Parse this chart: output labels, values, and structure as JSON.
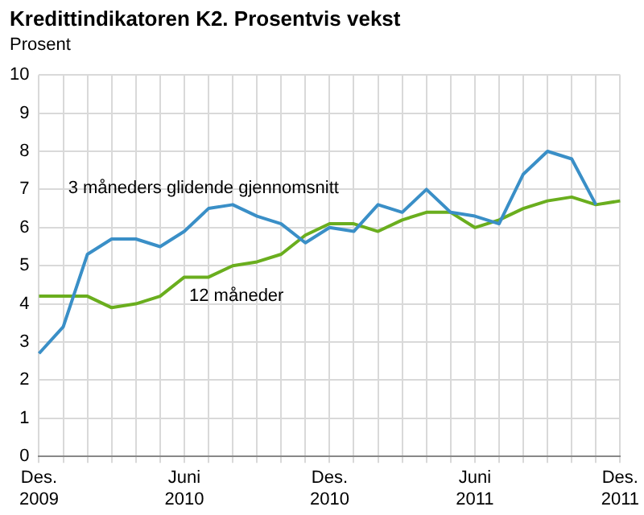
{
  "chart_data": {
    "type": "line",
    "title": "Kredittindikatoren K2. Prosentvis vekst",
    "ylabel": "Prosent",
    "categories": [
      "Des. 2009",
      null,
      null,
      null,
      null,
      null,
      "Juni 2010",
      null,
      null,
      null,
      null,
      null,
      "Des. 2010",
      null,
      null,
      null,
      null,
      null,
      "Juni 2011",
      null,
      null,
      null,
      null,
      null,
      "Des. 2011"
    ],
    "series": [
      {
        "name": "3 måneders glidende gjennomsnitt",
        "color": "#3a8fc7",
        "values": [
          2.7,
          3.4,
          5.3,
          5.7,
          5.7,
          5.5,
          5.9,
          6.5,
          6.6,
          6.3,
          6.1,
          5.6,
          6.0,
          5.9,
          6.6,
          6.4,
          7.0,
          6.4,
          6.3,
          6.1,
          7.4,
          8.0,
          7.8,
          6.6,
          null
        ]
      },
      {
        "name": "12 måneder",
        "color": "#6aae1e",
        "values": [
          4.2,
          4.2,
          4.2,
          3.9,
          4.0,
          4.2,
          4.7,
          4.7,
          5.0,
          5.1,
          5.3,
          5.8,
          6.1,
          6.1,
          5.9,
          6.2,
          6.4,
          6.4,
          6.0,
          6.2,
          6.5,
          6.7,
          6.8,
          6.6,
          6.7
        ]
      }
    ],
    "ylim": [
      0,
      10
    ],
    "yticks": [
      0,
      1,
      2,
      3,
      4,
      5,
      6,
      7,
      8,
      9,
      10
    ],
    "grid": true,
    "legend": false,
    "marker": "none",
    "line_style": "solid"
  }
}
